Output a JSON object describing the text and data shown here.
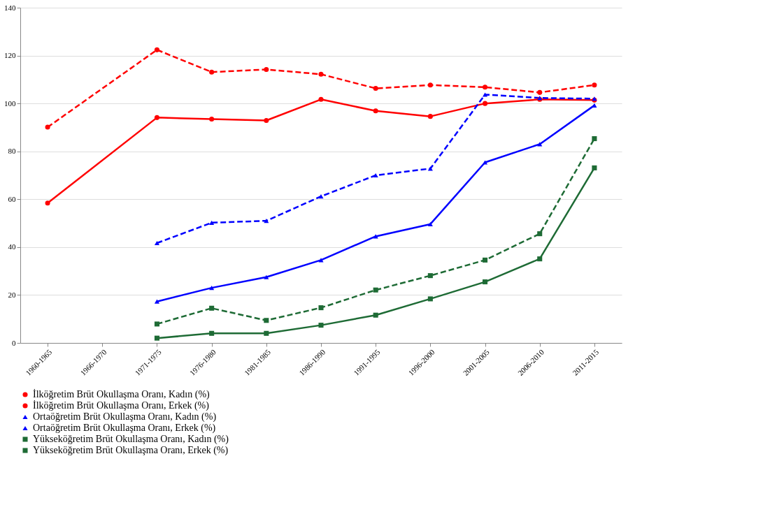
{
  "chart_data": {
    "type": "line",
    "categories": [
      "1960-1965",
      "1966-1970",
      "1971-1975",
      "1976-1980",
      "1981-1985",
      "1986-1990",
      "1991-1995",
      "1996-2000",
      "2001-2005",
      "2006-2010",
      "2011-2015"
    ],
    "series": [
      {
        "name": "İlköğretim Brüt Okullaşma Oranı, Kadın (%)",
        "color": "#ff0000",
        "marker": "circle",
        "line_style": "solid",
        "values": [
          58.4,
          null,
          94.1,
          93.5,
          92.9,
          101.7,
          96.9,
          94.6,
          100.0,
          101.7,
          101.4
        ]
      },
      {
        "name": "İlköğretim Brüt Okullaşma Oranı, Erkek (%)",
        "color": "#ff0000",
        "marker": "circle",
        "line_style": "dashed",
        "values": [
          90.1,
          null,
          122.4,
          113.1,
          114.2,
          112.2,
          106.3,
          107.7,
          106.8,
          104.6,
          107.7
        ]
      },
      {
        "name": "Ortaöğretim Brüt Okullaşma Oranı, Kadın (%)",
        "color": "#0000ff",
        "marker": "triangle",
        "line_style": "solid",
        "values": [
          null,
          null,
          17.3,
          23.0,
          27.5,
          34.6,
          44.5,
          49.6,
          75.4,
          83.0,
          99.2
        ]
      },
      {
        "name": "Ortaöğretim Brüt Okullaşma Oranı, Erkek (%)",
        "color": "#0000ff",
        "marker": "triangle",
        "line_style": "dashed",
        "values": [
          null,
          null,
          41.7,
          50.2,
          51.0,
          61.2,
          70.0,
          72.8,
          103.7,
          102.3,
          102.0
        ]
      },
      {
        "name": "Yükseköğretim Brüt Okullaşma Oranı, Kadın (%)",
        "color": "#1e6b35",
        "marker": "square",
        "line_style": "solid",
        "values": [
          null,
          null,
          2.0,
          4.0,
          4.0,
          7.4,
          11.6,
          18.4,
          25.5,
          35.1,
          73.1
        ]
      },
      {
        "name": "Yükseköğretim Brüt Okullaşma Oranı, Erkek (%)",
        "color": "#1e6b35",
        "marker": "square",
        "line_style": "dashed",
        "values": [
          null,
          null,
          7.9,
          14.5,
          9.4,
          14.7,
          22.1,
          28.1,
          34.6,
          45.6,
          85.3
        ]
      }
    ],
    "ylim": [
      0,
      140
    ],
    "yticks": [
      0,
      20,
      40,
      60,
      80,
      100,
      120,
      140
    ],
    "grid": "y",
    "legend": "bottom"
  }
}
